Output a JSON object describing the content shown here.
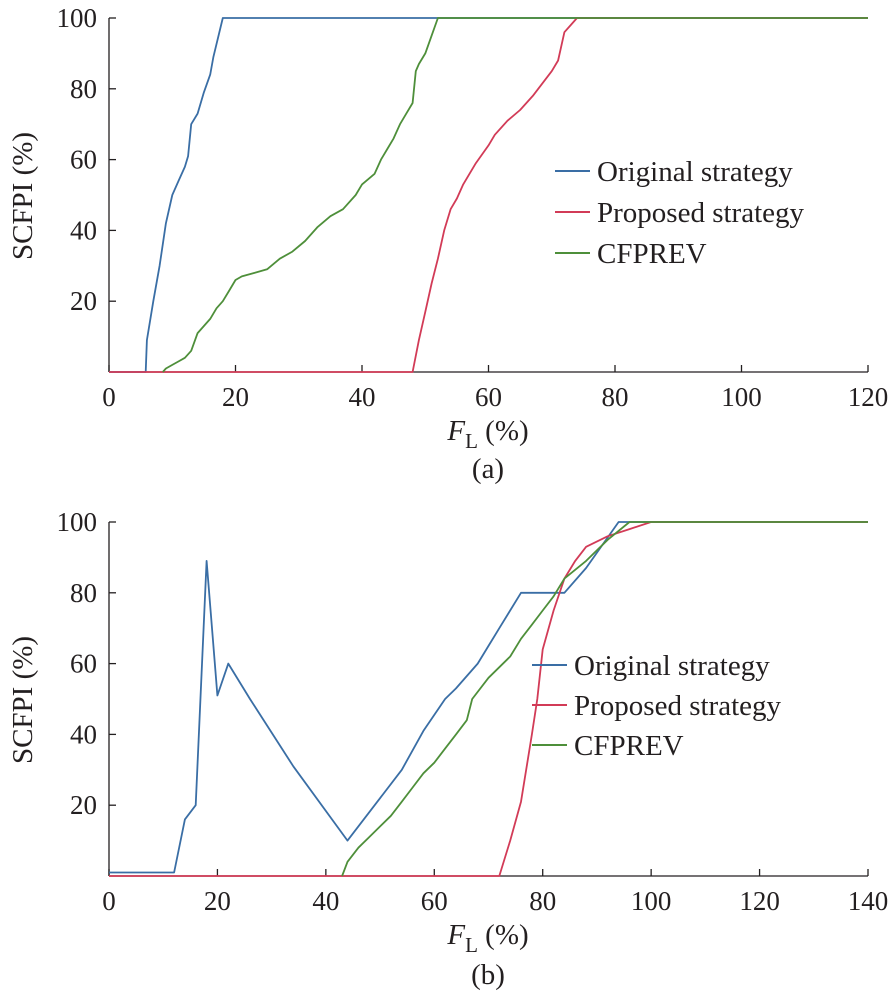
{
  "colors": {
    "original": "#3a6ea5",
    "proposed": "#d23b57",
    "cfprev": "#4e8f3a",
    "axis": "#231f20"
  },
  "chart_data": [
    {
      "type": "line",
      "caption": "(a)",
      "xlabel_main": "F",
      "xlabel_sub": "L",
      "xlabel_unit": " (%)",
      "ylabel": "SCFPI (%)",
      "xlim": [
        0,
        120
      ],
      "ylim": [
        0,
        100
      ],
      "xticks": [
        0,
        20,
        40,
        60,
        80,
        100,
        120
      ],
      "yticks": [
        20,
        40,
        60,
        80,
        100
      ],
      "legend_position": "center-right",
      "series": [
        {
          "name": "Original strategy",
          "color_key": "original",
          "points": [
            [
              0,
              0
            ],
            [
              5.8,
              0
            ],
            [
              6,
              9
            ],
            [
              7,
              20
            ],
            [
              8,
              30
            ],
            [
              9,
              42
            ],
            [
              10,
              50
            ],
            [
              11,
              54
            ],
            [
              12,
              58
            ],
            [
              12.5,
              61
            ],
            [
              13,
              70
            ],
            [
              14,
              73
            ],
            [
              15,
              79
            ],
            [
              16,
              84
            ],
            [
              16.5,
              89
            ],
            [
              18,
              100
            ],
            [
              120,
              100
            ]
          ]
        },
        {
          "name": "Proposed strategy",
          "color_key": "proposed",
          "points": [
            [
              0,
              0
            ],
            [
              48,
              0
            ],
            [
              49,
              9
            ],
            [
              50,
              17
            ],
            [
              51,
              25
            ],
            [
              52,
              32
            ],
            [
              53,
              40
            ],
            [
              54,
              46
            ],
            [
              55,
              49
            ],
            [
              56,
              53
            ],
            [
              57,
              56
            ],
            [
              58,
              59
            ],
            [
              60,
              64
            ],
            [
              61,
              67
            ],
            [
              63,
              71
            ],
            [
              65,
              74
            ],
            [
              67,
              78
            ],
            [
              70,
              85
            ],
            [
              71,
              88
            ],
            [
              72,
              96
            ],
            [
              73,
              98
            ],
            [
              74,
              100
            ],
            [
              120,
              100
            ]
          ]
        },
        {
          "name": "CFPREV",
          "color_key": "cfprev",
          "points": [
            [
              8.5,
              0
            ],
            [
              9,
              1
            ],
            [
              10,
              2
            ],
            [
              11,
              3
            ],
            [
              12,
              4
            ],
            [
              13,
              6
            ],
            [
              14,
              11
            ],
            [
              15,
              13
            ],
            [
              16,
              15
            ],
            [
              17,
              18
            ],
            [
              18,
              20
            ],
            [
              19,
              23
            ],
            [
              20,
              26
            ],
            [
              21,
              27
            ],
            [
              23,
              28
            ],
            [
              25,
              29
            ],
            [
              27,
              32
            ],
            [
              29,
              34
            ],
            [
              31,
              37
            ],
            [
              33,
              41
            ],
            [
              35,
              44
            ],
            [
              37,
              46
            ],
            [
              39,
              50
            ],
            [
              40,
              53
            ],
            [
              42,
              56
            ],
            [
              43,
              60
            ],
            [
              44,
              63
            ],
            [
              45,
              66
            ],
            [
              46,
              70
            ],
            [
              47,
              73
            ],
            [
              48,
              76
            ],
            [
              48.5,
              85
            ],
            [
              49,
              87
            ],
            [
              50,
              90
            ],
            [
              51,
              95
            ],
            [
              52,
              100
            ],
            [
              120,
              100
            ]
          ]
        }
      ]
    },
    {
      "type": "line",
      "caption": "(b)",
      "xlabel_main": "F",
      "xlabel_sub": "L",
      "xlabel_unit": " (%)",
      "ylabel": "SCFPI (%)",
      "xlim": [
        0,
        140
      ],
      "ylim": [
        0,
        100
      ],
      "xticks": [
        0,
        20,
        40,
        60,
        80,
        100,
        120,
        140
      ],
      "yticks": [
        20,
        40,
        60,
        80,
        100
      ],
      "legend_position": "center-right",
      "series": [
        {
          "name": "Original strategy",
          "color_key": "original",
          "points": [
            [
              0,
              1
            ],
            [
              12,
              1
            ],
            [
              14,
              16
            ],
            [
              16,
              20
            ],
            [
              18,
              89
            ],
            [
              20,
              51
            ],
            [
              22,
              60
            ],
            [
              26,
              50
            ],
            [
              34,
              31
            ],
            [
              44,
              10
            ],
            [
              54,
              30
            ],
            [
              58,
              41
            ],
            [
              62,
              50
            ],
            [
              64,
              53
            ],
            [
              68,
              60
            ],
            [
              70,
              65
            ],
            [
              72,
              70
            ],
            [
              76,
              80
            ],
            [
              84,
              80
            ],
            [
              88,
              87
            ],
            [
              94,
              100
            ],
            [
              140,
              100
            ]
          ]
        },
        {
          "name": "Proposed strategy",
          "color_key": "proposed",
          "points": [
            [
              0,
              0
            ],
            [
              72,
              0
            ],
            [
              74,
              10
            ],
            [
              76,
              21
            ],
            [
              78,
              40
            ],
            [
              79,
              50
            ],
            [
              80,
              64
            ],
            [
              82,
              75
            ],
            [
              84,
              84
            ],
            [
              86,
              89
            ],
            [
              88,
              93
            ],
            [
              92,
              96
            ],
            [
              96,
              98
            ],
            [
              100,
              100
            ],
            [
              140,
              100
            ]
          ]
        },
        {
          "name": "CFPREV",
          "color_key": "cfprev",
          "points": [
            [
              43,
              0
            ],
            [
              44,
              4
            ],
            [
              46,
              8
            ],
            [
              48,
              11
            ],
            [
              50,
              14
            ],
            [
              52,
              17
            ],
            [
              54,
              21
            ],
            [
              56,
              25
            ],
            [
              58,
              29
            ],
            [
              60,
              32
            ],
            [
              62,
              36
            ],
            [
              64,
              40
            ],
            [
              66,
              44
            ],
            [
              67,
              50
            ],
            [
              70,
              56
            ],
            [
              74,
              62
            ],
            [
              76,
              67
            ],
            [
              78,
              71
            ],
            [
              80,
              75
            ],
            [
              82,
              79
            ],
            [
              84,
              84
            ],
            [
              88,
              89
            ],
            [
              92,
              95
            ],
            [
              96,
              100
            ],
            [
              140,
              100
            ]
          ]
        }
      ]
    }
  ]
}
